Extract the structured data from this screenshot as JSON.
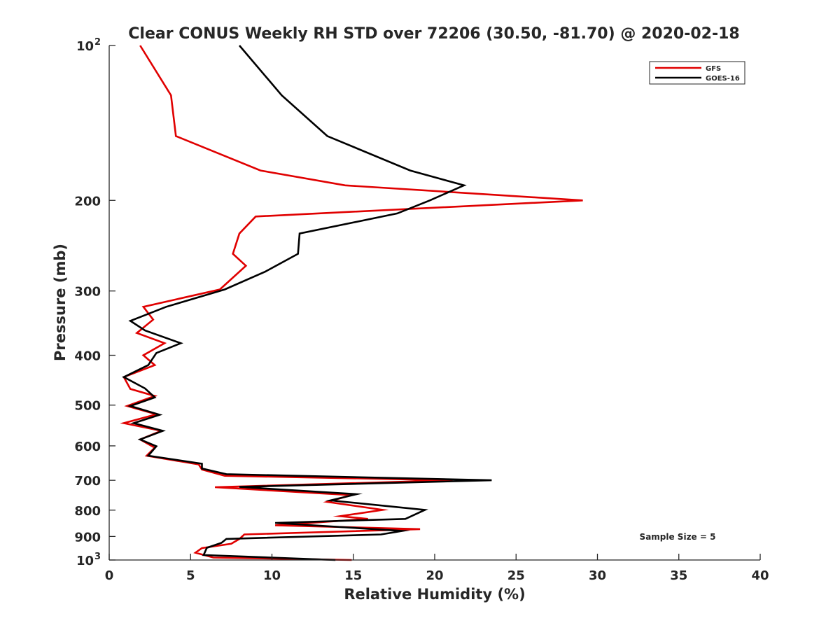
{
  "chart_data": {
    "type": "line",
    "title": "Clear CONUS Weekly RH STD over 72206 (30.50, -81.70) @ 2020-02-18",
    "xlabel": "Relative Humidity (%)",
    "ylabel": "Pressure (mb)",
    "xlim": [
      0,
      40
    ],
    "ylim": [
      100,
      1000
    ],
    "yscale": "log",
    "y_reversed": true,
    "grid": false,
    "legend_position": "top-right",
    "x_ticks": [
      "0",
      "5",
      "10",
      "15",
      "20",
      "25",
      "30",
      "35",
      "40"
    ],
    "y_ticks": [
      {
        "value": 100,
        "label": "10",
        "sup": "2"
      },
      {
        "value": 200,
        "label": "200",
        "sup": ""
      },
      {
        "value": 300,
        "label": "300",
        "sup": ""
      },
      {
        "value": 400,
        "label": "400",
        "sup": ""
      },
      {
        "value": 500,
        "label": "500",
        "sup": ""
      },
      {
        "value": 600,
        "label": "600",
        "sup": ""
      },
      {
        "value": 700,
        "label": "700",
        "sup": ""
      },
      {
        "value": 800,
        "label": "800",
        "sup": ""
      },
      {
        "value": 900,
        "label": "900",
        "sup": ""
      },
      {
        "value": 1000,
        "label": "10",
        "sup": "3"
      }
    ],
    "annotation": "Sample Size = 5",
    "series": [
      {
        "name": "GFS",
        "color": "#e00000",
        "points": [
          [
            1.9,
            100
          ],
          [
            3.8,
            125
          ],
          [
            4.1,
            150
          ],
          [
            9.3,
            175
          ],
          [
            14.5,
            187
          ],
          [
            29.1,
            200
          ],
          [
            9.0,
            215
          ],
          [
            8.0,
            232
          ],
          [
            7.6,
            254
          ],
          [
            8.4,
            268
          ],
          [
            6.8,
            298
          ],
          [
            2.1,
            322
          ],
          [
            2.7,
            341
          ],
          [
            1.7,
            362
          ],
          [
            3.4,
            379
          ],
          [
            2.1,
            400
          ],
          [
            2.8,
            418
          ],
          [
            0.9,
            441
          ],
          [
            1.3,
            465
          ],
          [
            2.8,
            480
          ],
          [
            1.1,
            502
          ],
          [
            2.9,
            521
          ],
          [
            0.9,
            542
          ],
          [
            3.2,
            561
          ],
          [
            1.9,
            583
          ],
          [
            2.8,
            605
          ],
          [
            2.3,
            627
          ],
          [
            5.5,
            652
          ],
          [
            5.7,
            667
          ],
          [
            7.1,
            686
          ],
          [
            21.1,
            700
          ],
          [
            6.5,
            722
          ],
          [
            14.9,
            748
          ],
          [
            13.4,
            771
          ],
          [
            16.8,
            799
          ],
          [
            14.2,
            822
          ],
          [
            15.9,
            832
          ],
          [
            10.2,
            856
          ],
          [
            19.1,
            871
          ],
          [
            8.3,
            892
          ],
          [
            8.0,
            910
          ],
          [
            7.5,
            930
          ],
          [
            5.7,
            948
          ],
          [
            5.3,
            968
          ],
          [
            6.4,
            989
          ],
          [
            14.9,
            1000
          ]
        ]
      },
      {
        "name": "GOES-16",
        "color": "#000000",
        "points": [
          [
            8.0,
            100
          ],
          [
            10.6,
            125
          ],
          [
            13.4,
            150
          ],
          [
            18.5,
            175
          ],
          [
            21.8,
            187
          ],
          [
            19.7,
            200
          ],
          [
            17.7,
            212
          ],
          [
            11.7,
            232
          ],
          [
            11.6,
            254
          ],
          [
            9.6,
            275
          ],
          [
            7.1,
            298
          ],
          [
            3.5,
            322
          ],
          [
            1.3,
            343
          ],
          [
            2.2,
            358
          ],
          [
            4.4,
            379
          ],
          [
            2.9,
            396
          ],
          [
            2.4,
            418
          ],
          [
            0.9,
            441
          ],
          [
            2.2,
            464
          ],
          [
            2.8,
            483
          ],
          [
            1.3,
            502
          ],
          [
            3.1,
            522
          ],
          [
            1.5,
            542
          ],
          [
            3.3,
            561
          ],
          [
            1.9,
            583
          ],
          [
            2.9,
            601
          ],
          [
            2.4,
            627
          ],
          [
            5.7,
            650
          ],
          [
            5.7,
            664
          ],
          [
            7.2,
            681
          ],
          [
            23.5,
            700
          ],
          [
            8.0,
            721
          ],
          [
            15.2,
            745
          ],
          [
            13.6,
            766
          ],
          [
            19.4,
            799
          ],
          [
            18.2,
            832
          ],
          [
            10.2,
            847
          ],
          [
            18.0,
            878
          ],
          [
            16.7,
            892
          ],
          [
            7.2,
            910
          ],
          [
            6.9,
            926
          ],
          [
            6.0,
            947
          ],
          [
            5.8,
            978
          ],
          [
            13.9,
            1000
          ]
        ]
      }
    ]
  }
}
